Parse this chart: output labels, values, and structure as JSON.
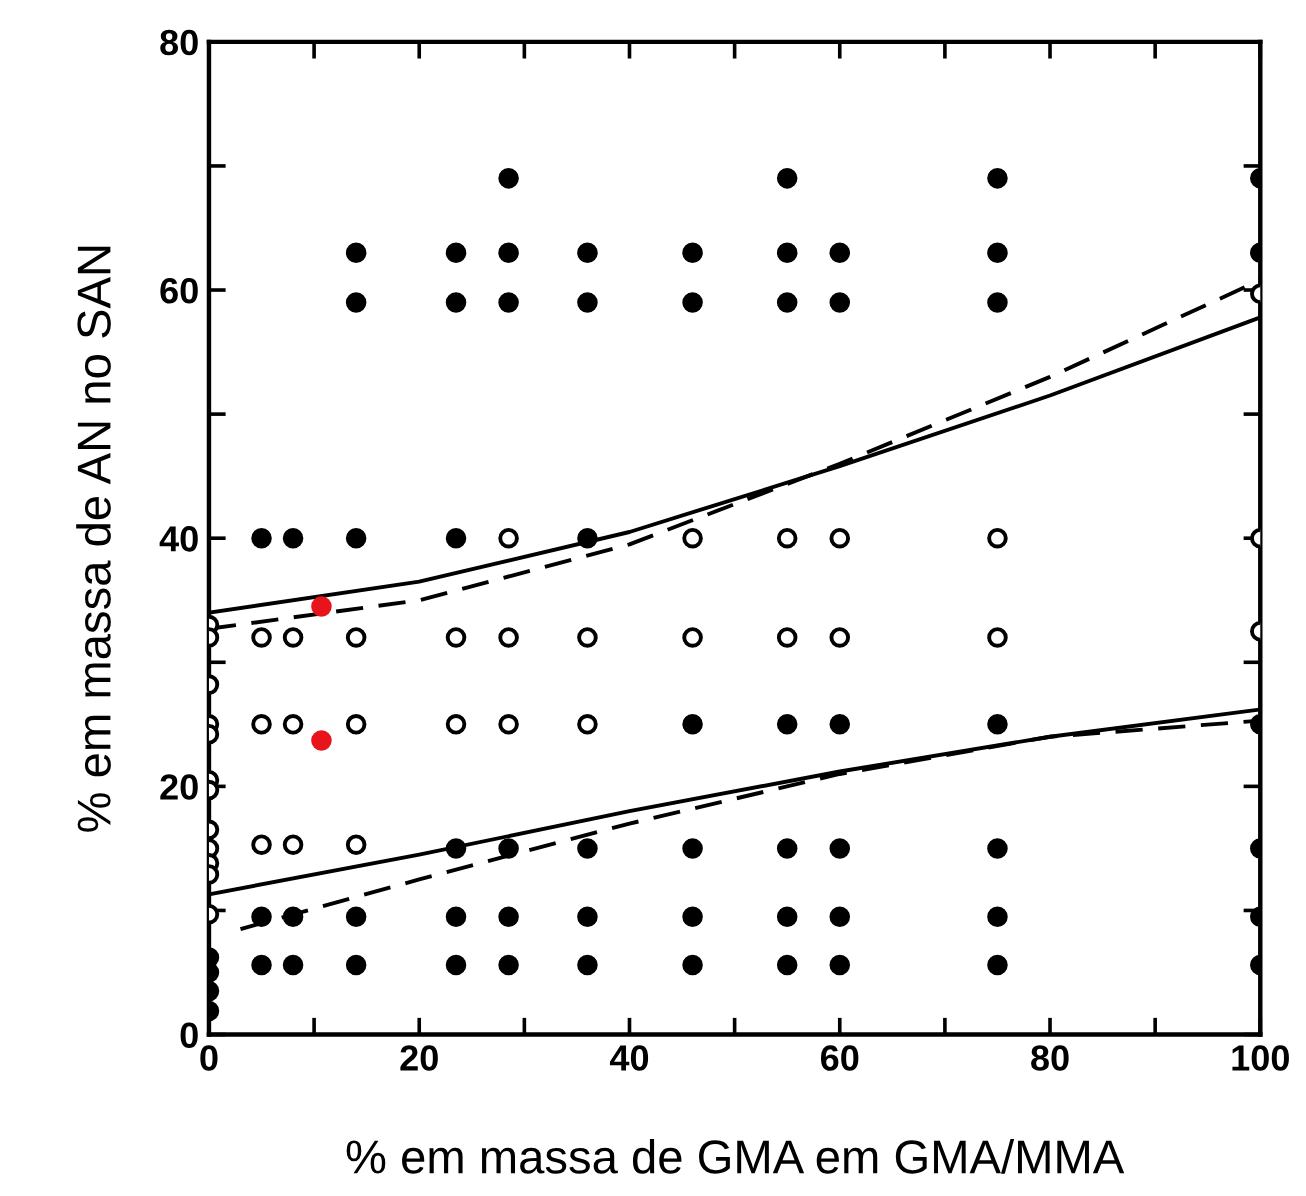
{
  "chart_data": {
    "type": "scatter",
    "xlabel": "% em massa de GMA em GMA/MMA",
    "ylabel": "% em massa de AN no SAN",
    "xlim": [
      0,
      100
    ],
    "ylim": [
      0,
      80
    ],
    "xticks": [
      0,
      {
        "value": 10,
        "label": null
      },
      20,
      {
        "value": 30,
        "label": null
      },
      40,
      {
        "value": 50,
        "label": null
      },
      60,
      {
        "value": 70,
        "label": null
      },
      80,
      {
        "value": 90,
        "label": null
      },
      100
    ],
    "yticks": [
      0,
      {
        "value": 10,
        "label": null
      },
      20,
      {
        "value": 30,
        "label": null
      },
      40,
      {
        "value": 50,
        "label": null
      },
      60,
      {
        "value": 70,
        "label": null
      },
      80
    ],
    "grid": false,
    "legend": false,
    "series": [
      {
        "marker": "circle",
        "color": "#000000",
        "x": [
          0,
          0,
          0,
          0,
          5,
          5,
          5,
          8,
          8,
          8,
          14,
          14,
          14,
          14,
          14,
          23.5,
          23.5,
          23.5,
          23.5,
          23.5,
          23.5,
          28.5,
          28.5,
          28.5,
          28.5,
          28.5,
          28.5,
          36,
          36,
          36,
          36,
          36,
          36,
          46,
          46,
          46,
          46,
          46,
          46,
          55,
          55,
          55,
          55,
          55,
          55,
          55,
          60,
          60,
          60,
          60,
          60,
          60,
          75,
          75,
          75,
          75,
          75,
          75,
          75,
          100,
          100,
          100,
          100,
          100,
          100
        ],
        "values": [
          6.2,
          3.5,
          1.9,
          5,
          40,
          9.5,
          5.6,
          40,
          9.5,
          5.6,
          63,
          59,
          40,
          9.5,
          5.6,
          63,
          59,
          40,
          15,
          9.5,
          5.6,
          69,
          63,
          59,
          15,
          9.5,
          5.6,
          63,
          59,
          40,
          15,
          9.5,
          5.6,
          63,
          59,
          25,
          15,
          9.5,
          5.6,
          69,
          63,
          59,
          25,
          15,
          9.5,
          5.6,
          63,
          59,
          25,
          15,
          9.5,
          5.6,
          69,
          63,
          59,
          25,
          15,
          9.5,
          5.6,
          69,
          63,
          25,
          15,
          9.5,
          5.6
        ]
      },
      {
        "marker": "circle",
        "color": "#ffffff",
        "x": [
          0,
          0,
          0,
          0,
          0,
          0,
          0,
          0,
          0,
          0,
          0,
          0,
          5,
          5,
          5,
          8,
          8,
          8,
          14,
          14,
          14,
          23.5,
          23.5,
          28.5,
          28.5,
          28.5,
          36,
          36,
          46,
          46,
          55,
          55,
          60,
          60,
          75,
          75,
          100,
          100,
          100
        ],
        "values": [
          33,
          32,
          28.2,
          25,
          24.2,
          20.5,
          19.7,
          16.5,
          15,
          13.8,
          12.9,
          9.7,
          32,
          25,
          15.3,
          32,
          25,
          15.3,
          32,
          25,
          15.3,
          32,
          25,
          40,
          32,
          25,
          32,
          25,
          40,
          32,
          40,
          32,
          40,
          32,
          40,
          32,
          59.7,
          40,
          32.5
        ]
      },
      {
        "marker": "circle",
        "color": "#e8141c",
        "x": [
          10.7,
          10.7
        ],
        "values": [
          34.5,
          23.7
        ]
      },
      {
        "type": "line",
        "color": "#000000",
        "line_style": "solid",
        "x": [
          0,
          20,
          40,
          60,
          80,
          100
        ],
        "values": [
          34,
          36.5,
          40.5,
          45.8,
          51.5,
          57.8
        ]
      },
      {
        "type": "line",
        "color": "#000000",
        "line_style": "dashed",
        "x": [
          0,
          20,
          40,
          60,
          80,
          100
        ],
        "values": [
          32.7,
          35,
          39.5,
          46,
          53,
          60.8
        ]
      },
      {
        "type": "line",
        "color": "#000000",
        "line_style": "solid",
        "x": [
          0,
          20,
          40,
          60,
          80,
          100
        ],
        "values": [
          11.3,
          14.5,
          18,
          21.2,
          24,
          26.2
        ]
      },
      {
        "type": "line",
        "color": "#000000",
        "line_style": "dashed",
        "x": [
          3,
          20,
          40,
          60,
          80,
          100
        ],
        "values": [
          8.5,
          12.5,
          17,
          21,
          24,
          25.3
        ]
      }
    ]
  }
}
